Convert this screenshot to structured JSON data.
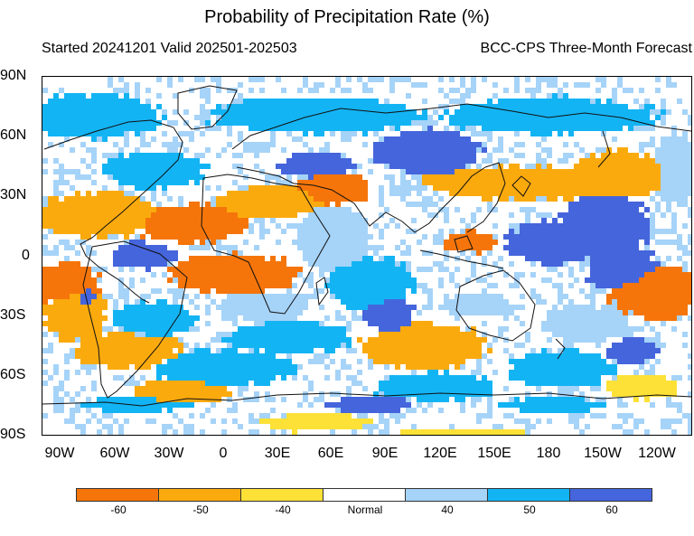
{
  "title": "Probability of Precipitation Rate (%)",
  "subtitle_left": "Started 20241201  Valid 202501-202503",
  "subtitle_right": "BCC-CPS Three-Month Forecast",
  "lat_labels": [
    "90N",
    "60N",
    "30N",
    "0",
    "30S",
    "60S",
    "90S"
  ],
  "lon_labels": [
    "90W",
    "60W",
    "30W",
    "0",
    "30E",
    "60E",
    "90E",
    "120E",
    "150E",
    "180",
    "150W",
    "120W"
  ],
  "legend": {
    "colors": [
      "#f5750a",
      "#fbaa0e",
      "#fde137",
      "#ffffff",
      "#a6d3f8",
      "#13b4f4",
      "#4565dc"
    ],
    "labels": [
      "-60",
      "-50",
      "-40",
      "Normal",
      "40",
      "50",
      "60"
    ]
  },
  "map_data": {
    "projection": "equirectangular",
    "lon_range": [
      -110,
      145
    ],
    "lat_range": [
      -90,
      90
    ],
    "categories": [
      "below -60",
      "below -50",
      "below -40",
      "normal",
      "above 40",
      "above 50",
      "above 60"
    ]
  }
}
